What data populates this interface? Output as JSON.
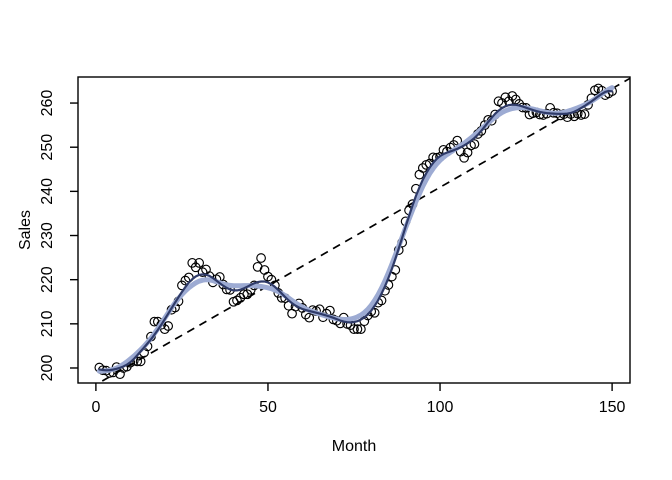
{
  "chart_data": {
    "type": "scatter",
    "title": "",
    "xlabel": "Month",
    "ylabel": "Sales",
    "x_description": "Month index 1..150 (BJsales-style monthly sales series)",
    "x_start": 1,
    "values": [
      200.1,
      199.5,
      199.4,
      198.9,
      199.0,
      200.2,
      198.6,
      200.0,
      200.3,
      201.2,
      201.6,
      201.5,
      201.5,
      203.5,
      204.9,
      207.1,
      210.5,
      210.5,
      209.8,
      208.8,
      209.5,
      213.2,
      213.7,
      215.1,
      218.7,
      219.8,
      220.5,
      223.8,
      222.8,
      223.8,
      221.7,
      222.3,
      220.8,
      219.4,
      220.1,
      220.6,
      218.9,
      217.8,
      217.7,
      215.0,
      215.3,
      215.9,
      216.7,
      216.7,
      217.7,
      218.7,
      222.9,
      224.9,
      222.2,
      220.7,
      220.0,
      218.7,
      217.0,
      215.9,
      215.8,
      214.1,
      212.3,
      213.9,
      214.6,
      213.6,
      212.1,
      211.4,
      213.1,
      212.9,
      213.3,
      211.5,
      212.3,
      213.0,
      211.0,
      210.7,
      210.1,
      211.4,
      210.0,
      209.7,
      208.8,
      208.8,
      208.8,
      210.6,
      211.9,
      212.8,
      212.5,
      214.8,
      215.3,
      217.5,
      218.8,
      220.7,
      222.2,
      226.7,
      228.4,
      233.2,
      235.7,
      237.1,
      240.6,
      243.8,
      245.3,
      246.0,
      246.3,
      247.7,
      247.6,
      247.8,
      249.4,
      249.0,
      249.9,
      250.5,
      251.5,
      249.0,
      247.6,
      248.8,
      250.4,
      250.7,
      253.0,
      253.7,
      255.0,
      256.2,
      256.0,
      257.4,
      260.4,
      260.0,
      261.3,
      260.4,
      261.6,
      260.8,
      259.8,
      259.0,
      258.9,
      257.4,
      257.7,
      257.9,
      257.4,
      257.3,
      257.6,
      258.9,
      257.8,
      257.7,
      257.2,
      257.5,
      256.8,
      257.5,
      257.0,
      257.6,
      257.3,
      257.5,
      259.6,
      261.1,
      262.9,
      263.3,
      262.8,
      261.8,
      262.2,
      262.7
    ],
    "x_ticks": [
      0,
      50,
      100,
      150
    ],
    "y_ticks": [
      200,
      210,
      220,
      230,
      240,
      250,
      260
    ],
    "xlim": [
      -5.2,
      155.2
    ],
    "ylim": [
      196.6,
      265.9
    ],
    "grid": false,
    "legend": "none",
    "point_style": {
      "shape": "open-circle",
      "radius": 4.3,
      "color": "#000000"
    },
    "overlays": [
      {
        "name": "smooth-wide",
        "type": "local-regression",
        "half_window": 12,
        "color": "#9dabd3",
        "width": 5
      },
      {
        "name": "smooth-core",
        "type": "local-regression",
        "half_window": 8,
        "color": "#2f3b69",
        "width": 2.2
      },
      {
        "name": "linear-trend",
        "type": "linear-fit",
        "line_style": "dashed",
        "color": "#000000",
        "width": 1.7
      }
    ]
  }
}
